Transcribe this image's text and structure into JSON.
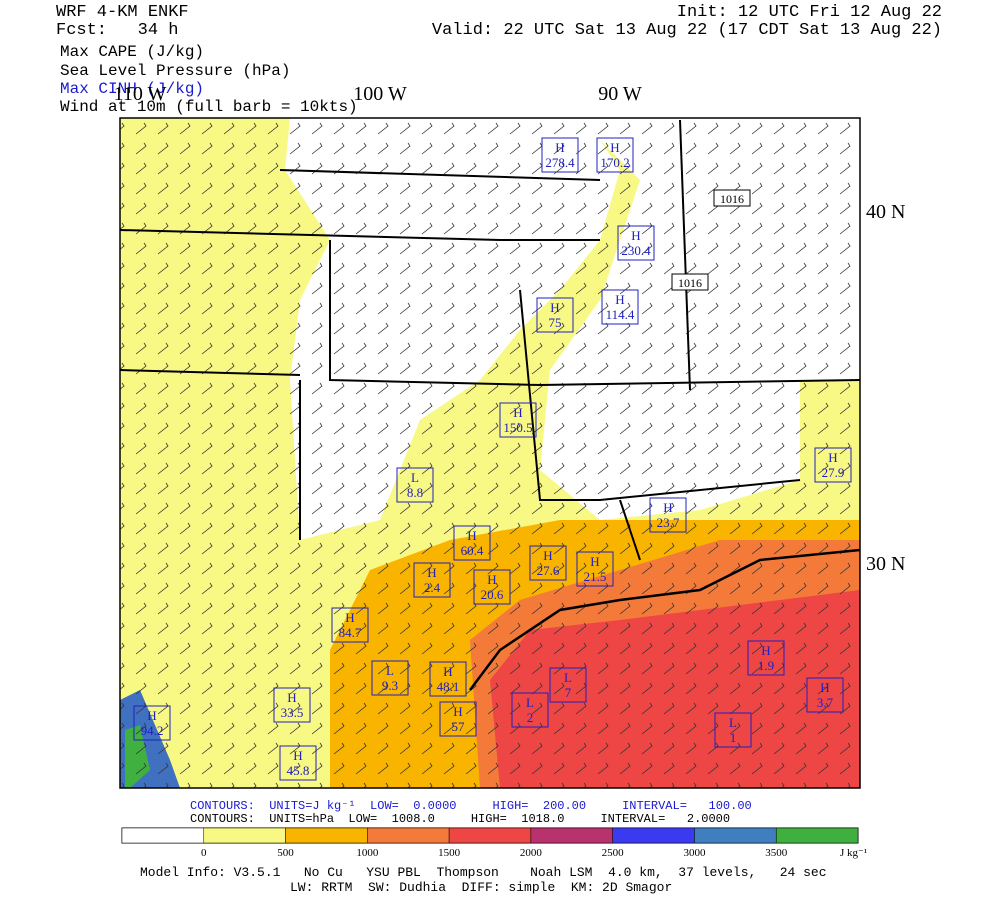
{
  "header": {
    "title": "WRF 4-KM ENKF",
    "forecast": "Fcst:   34 h",
    "fields": [
      "Max CAPE (J/kg)",
      "Sea Level Pressure (hPa)",
      "Max CINH (J/kg)",
      "Wind at 10m (full barb = 10kts)"
    ],
    "init": "Init: 12 UTC Fri 12 Aug 22",
    "valid": "Valid: 22 UTC Sat 13 Aug 22 (17 CDT Sat 13 Aug 22)"
  },
  "map": {
    "lon_labels": [
      "110 W",
      "100 W",
      "90 W"
    ],
    "lat_labels": [
      "40 N",
      "30 N"
    ],
    "isobar_labels": [
      "1016",
      "1016"
    ],
    "markers": [
      {
        "kind": "H",
        "value": "278.4"
      },
      {
        "kind": "H",
        "value": "170.2"
      },
      {
        "kind": "H",
        "value": "230.4"
      },
      {
        "kind": "H",
        "value": "114.4"
      },
      {
        "kind": "H",
        "value": "75"
      },
      {
        "kind": "H",
        "value": "150.5"
      },
      {
        "kind": "L",
        "value": "8.8"
      },
      {
        "kind": "H",
        "value": "60.4"
      },
      {
        "kind": "H",
        "value": "27.6"
      },
      {
        "kind": "H",
        "value": "21.5"
      },
      {
        "kind": "H",
        "value": "2.4"
      },
      {
        "kind": "H",
        "value": "20.6"
      },
      {
        "kind": "H",
        "value": "84.7"
      },
      {
        "kind": "L",
        "value": "9.3"
      },
      {
        "kind": "H",
        "value": "48.1"
      },
      {
        "kind": "H",
        "value": "57"
      },
      {
        "kind": "H",
        "value": "33.5"
      },
      {
        "kind": "H",
        "value": "94.2"
      },
      {
        "kind": "H",
        "value": "45.8"
      },
      {
        "kind": "H",
        "value": "23.7"
      },
      {
        "kind": "H",
        "value": "27.9"
      },
      {
        "kind": "H",
        "value": "1.9"
      },
      {
        "kind": "H",
        "value": "3.7"
      },
      {
        "kind": "L",
        "value": "7"
      },
      {
        "kind": "L",
        "value": "2"
      },
      {
        "kind": "L",
        "value": "1"
      }
    ]
  },
  "footer": {
    "contours_cape": "CONTOURS:  UNITS=J kg⁻¹  LOW=  0.0000     HIGH=  200.00     INTERVAL=   100.00",
    "contours_slp": "CONTOURS:  UNITS=hPa  LOW=  1008.0     HIGH=  1018.0     INTERVAL=   2.0000",
    "colorbar_labels": [
      "0",
      "500",
      "1000",
      "1500",
      "2000",
      "2500",
      "3000",
      "3500"
    ],
    "colorbar_unit": "J kg⁻¹",
    "model_info": "Model Info: V3.5.1   No Cu   YSU PBL  Thompson    Noah LSM  4.0 km,  37 levels,   24 sec",
    "model_info_2": "LW: RRTM  SW: Dudhia  DIFF: simple  KM: 2D Smagor"
  }
}
